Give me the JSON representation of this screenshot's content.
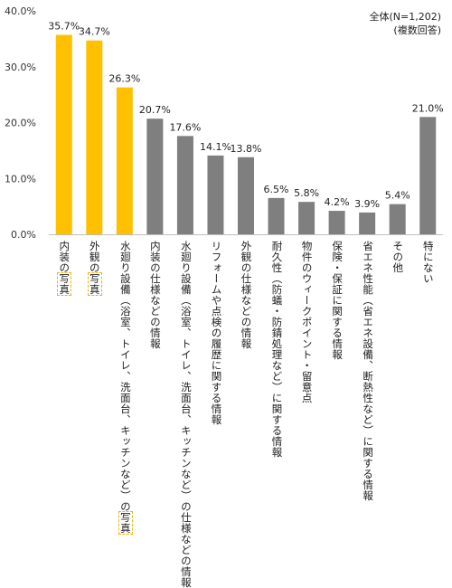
{
  "note": {
    "total": "全体(N=1,202)",
    "multi": "(複数回答)"
  },
  "colors": {
    "highlight": "#FFC000",
    "default": "#7F7F7F",
    "highlight_border": "#F3B400"
  },
  "chart_data": {
    "type": "bar",
    "ylim": [
      0,
      40
    ],
    "yticks": [
      "0.0%",
      "10.0%",
      "20.0%",
      "30.0%",
      "40.0%"
    ],
    "grid": false,
    "values": [
      35.7,
      34.7,
      26.3,
      20.7,
      17.6,
      14.1,
      13.8,
      6.5,
      5.8,
      4.2,
      3.9,
      5.4,
      21.0
    ],
    "value_labels": [
      "35.7%",
      "34.7%",
      "26.3%",
      "20.7%",
      "17.6%",
      "14.1%",
      "13.8%",
      "6.5%",
      "5.8%",
      "4.2%",
      "3.9%",
      "5.4%",
      "21.0%"
    ],
    "highlighted": [
      true,
      true,
      true,
      false,
      false,
      false,
      false,
      false,
      false,
      false,
      false,
      false,
      false
    ],
    "categories": [
      [
        [
          "内装の",
          ""
        ],
        [
          "写真",
          "hl"
        ]
      ],
      [
        [
          "外観の",
          ""
        ],
        [
          "写真",
          "hl"
        ]
      ],
      [
        [
          "水廻り設備（浴室、トイレ、洗面台、キッチンなど）の",
          ""
        ],
        [
          "写真",
          "hl"
        ]
      ],
      [
        [
          "内装の仕様などの情報",
          ""
        ]
      ],
      [
        [
          "水廻り設備（浴室、トイレ、洗面台、キッチンなど）の仕様などの情報",
          ""
        ]
      ],
      [
        [
          "リフォームや点検の履歴に関する情報",
          ""
        ]
      ],
      [
        [
          "外観の仕様などの情報",
          ""
        ]
      ],
      [
        [
          "耐久性（防蟻・防錆処理など）に関する情報",
          ""
        ]
      ],
      [
        [
          "物件のウィークポイント・留意点",
          ""
        ]
      ],
      [
        [
          "保険・保証に関する情報",
          ""
        ]
      ],
      [
        [
          "省エネ性能（省エネ設備、断熱性など）に関する情報",
          ""
        ]
      ],
      [
        [
          "その他",
          ""
        ]
      ],
      [
        [
          "特にない",
          ""
        ]
      ]
    ]
  }
}
